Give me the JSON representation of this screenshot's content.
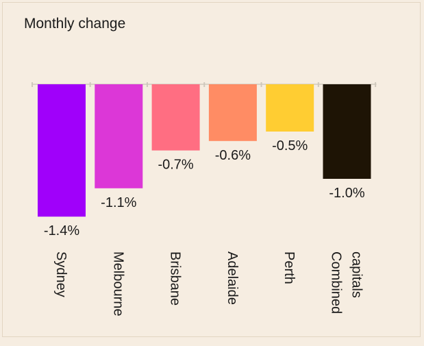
{
  "chart_data": {
    "type": "bar",
    "title": "Monthly change",
    "xlabel": "",
    "ylabel": "",
    "ylim": [
      -1.4,
      0
    ],
    "grid": false,
    "categories": [
      [
        "Sydney"
      ],
      [
        "Melbourne"
      ],
      [
        "Brisbane"
      ],
      [
        "Adelaide"
      ],
      [
        "Perth"
      ],
      [
        "Combined",
        "capitals"
      ]
    ],
    "values": [
      -1.4,
      -1.1,
      -0.7,
      -0.6,
      -0.5,
      -1.0
    ],
    "value_labels": [
      "-1.4%",
      "-1.1%",
      "-0.7%",
      "-0.6%",
      "-0.5%",
      "-1.0%"
    ],
    "colors": [
      "#a000fa",
      "#dc37d7",
      "#ff6e82",
      "#ff8c64",
      "#ffcd32",
      "#1e1405"
    ],
    "background": "#f6ede1"
  }
}
